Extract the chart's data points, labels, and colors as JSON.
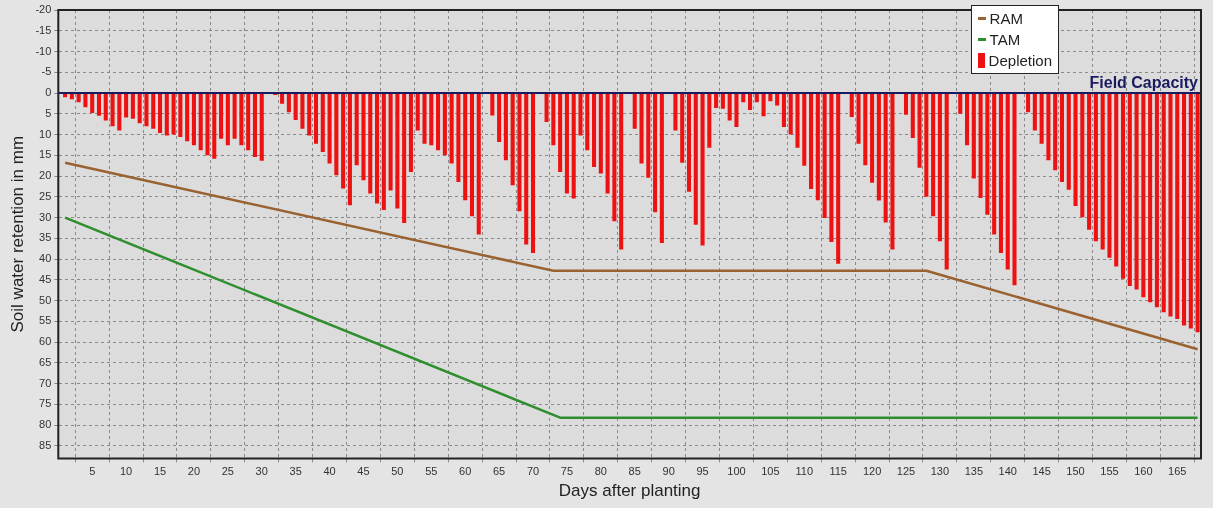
{
  "chart_data": {
    "type": "bar",
    "xlabel": "Days after planting",
    "ylabel": "Soil water retention in mm",
    "x": [
      1,
      2,
      3,
      4,
      5,
      6,
      7,
      8,
      9,
      10,
      11,
      12,
      13,
      14,
      15,
      16,
      17,
      18,
      19,
      20,
      21,
      22,
      23,
      24,
      25,
      26,
      27,
      28,
      29,
      30,
      31,
      32,
      33,
      34,
      35,
      36,
      37,
      38,
      39,
      40,
      41,
      42,
      43,
      44,
      45,
      46,
      47,
      48,
      49,
      50,
      51,
      52,
      53,
      54,
      55,
      56,
      57,
      58,
      59,
      60,
      61,
      62,
      63,
      64,
      65,
      66,
      67,
      68,
      69,
      70,
      71,
      72,
      73,
      74,
      75,
      76,
      77,
      78,
      79,
      80,
      81,
      82,
      83,
      84,
      85,
      86,
      87,
      88,
      89,
      90,
      91,
      92,
      93,
      94,
      95,
      96,
      97,
      98,
      99,
      100,
      101,
      102,
      103,
      104,
      105,
      106,
      107,
      108,
      109,
      110,
      111,
      112,
      113,
      114,
      115,
      116,
      117,
      118,
      119,
      120,
      121,
      122,
      123,
      124,
      125,
      126,
      127,
      128,
      129,
      130,
      131,
      132,
      133,
      134,
      135,
      136,
      137,
      138,
      139,
      140,
      141,
      142,
      143,
      144,
      145,
      146,
      147,
      148,
      149,
      150,
      151,
      152,
      153,
      154,
      155,
      156,
      157,
      158,
      159,
      160,
      161,
      162,
      163,
      164,
      165,
      166,
      167,
      168
    ],
    "series": [
      {
        "name": "RAM",
        "type": "line",
        "color": "#9a6230",
        "x": [
          1,
          73,
          128,
          168
        ],
        "values": [
          16.8,
          42.8,
          42.8,
          61.7
        ]
      },
      {
        "name": "TAM",
        "type": "line",
        "color": "#2f8f2f",
        "x": [
          1,
          74,
          168
        ],
        "values": [
          30,
          78.2,
          78.2
        ]
      },
      {
        "name": "Depletion",
        "color": "#ee1111",
        "values": [
          1,
          1.5,
          2.2,
          3.4,
          4.8,
          5.5,
          6.6,
          8,
          9,
          5.9,
          6.2,
          7.3,
          8,
          8.6,
          9.6,
          10.2,
          10,
          10.6,
          11.6,
          12.6,
          13.8,
          15,
          15.8,
          11,
          12.6,
          11,
          12.6,
          13.8,
          15.4,
          16.3,
          null,
          0.5,
          2.6,
          4.6,
          6.5,
          8.6,
          10.2,
          12.2,
          14.2,
          17,
          19.8,
          23,
          27,
          17.4,
          21,
          24.2,
          26.6,
          28.2,
          23.5,
          27.8,
          31.3,
          19,
          9,
          12.2,
          12.6,
          13.8,
          15,
          17,
          21.4,
          25.8,
          29.7,
          34.1,
          0,
          5.4,
          11.8,
          16.2,
          22.2,
          28.5,
          36.5,
          38.5,
          0,
          7,
          12.6,
          19,
          24.2,
          25.4,
          10.2,
          13.8,
          17.8,
          19.4,
          24.2,
          30.9,
          37.7,
          0,
          8.6,
          17,
          20.4,
          28.7,
          36.1,
          0,
          9,
          16.8,
          23.8,
          31.7,
          36.7,
          13.2,
          3.6,
          3.8,
          6.6,
          8.2,
          2.2,
          4.1,
          2.2,
          5.6,
          2,
          3,
          8.2,
          10,
          13.2,
          17.5,
          23.1,
          25.8,
          30.1,
          35.9,
          41.1,
          0,
          5.8,
          12.2,
          17.4,
          21.6,
          25.9,
          31.2,
          37.7,
          0,
          5.2,
          10.8,
          18,
          25,
          29.7,
          35.7,
          42.5,
          0,
          5,
          12.6,
          20.6,
          25.3,
          29.3,
          34.1,
          38.5,
          42.5,
          46.3,
          0,
          4.6,
          9,
          12.2,
          16.2,
          18.6,
          21.4,
          23.3,
          27.2,
          29.9,
          32.9,
          35.7,
          37.7,
          39.7,
          41.8,
          44.7,
          46.5,
          47.3,
          49.2,
          50.4,
          51.6,
          52.8,
          53.8,
          54.4,
          56,
          56.7,
          57.6
        ]
      }
    ],
    "xlim": [
      0,
      168.5
    ],
    "ylim": [
      88,
      -20
    ],
    "xticks": [
      5,
      10,
      15,
      20,
      25,
      30,
      35,
      40,
      45,
      50,
      55,
      60,
      65,
      70,
      75,
      80,
      85,
      90,
      95,
      100,
      105,
      110,
      115,
      120,
      125,
      130,
      135,
      140,
      145,
      150,
      155,
      160,
      165
    ],
    "yticks": [
      -20,
      -15,
      -10,
      -5,
      0,
      5,
      10,
      15,
      20,
      25,
      30,
      35,
      40,
      45,
      50,
      55,
      60,
      65,
      70,
      75,
      80,
      85
    ],
    "ref_lines": [
      {
        "axis": "y",
        "value": 0,
        "label": "Field Capacity",
        "color": "#1a1a5e"
      }
    ],
    "grid": true,
    "legend": "top right",
    "marker": "none"
  }
}
